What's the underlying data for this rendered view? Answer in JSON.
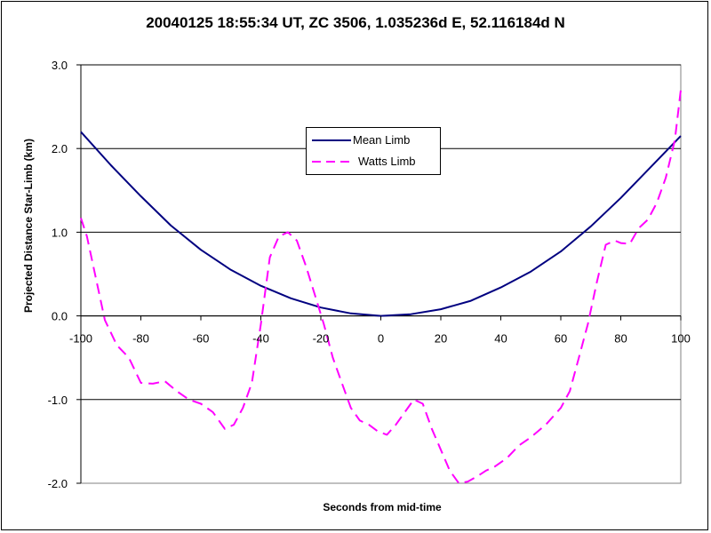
{
  "chart_data": {
    "type": "line",
    "title": "20040125 18:55:34 UT, ZC 3506, 1.035236d E, 52.116184d N",
    "xlabel": "Seconds from mid-time",
    "ylabel": "Projected Distance Star-Limb (km)",
    "xlim": [
      -100,
      100
    ],
    "ylim": [
      -2.0,
      3.0
    ],
    "x_ticks": [
      -100,
      -80,
      -60,
      -40,
      -20,
      0,
      20,
      40,
      60,
      80,
      100
    ],
    "x_tick_labels": [
      "-100",
      "-80",
      "-60",
      "-40",
      "-20",
      "0",
      "20",
      "40",
      "60",
      "80",
      "100"
    ],
    "y_ticks": [
      -2.0,
      -1.0,
      0.0,
      1.0,
      2.0,
      3.0
    ],
    "y_tick_labels": [
      "-2.0",
      "-1.0",
      "0.0",
      "1.0",
      "2.0",
      "3.0"
    ],
    "grid": "horizontal",
    "legend_position": "center-top",
    "series": [
      {
        "name": "Mean Limb",
        "color": "#000080",
        "style": "solid",
        "x": [
          -100,
          -90,
          -80,
          -70,
          -60,
          -50,
          -40,
          -30,
          -20,
          -10,
          0,
          10,
          20,
          30,
          40,
          50,
          60,
          70,
          80,
          90,
          100
        ],
        "y": [
          2.2,
          1.8,
          1.43,
          1.08,
          0.79,
          0.55,
          0.36,
          0.21,
          0.1,
          0.03,
          0.0,
          0.02,
          0.08,
          0.18,
          0.34,
          0.53,
          0.77,
          1.07,
          1.41,
          1.78,
          2.15
        ]
      },
      {
        "name": "Watts Limb",
        "color": "#ff00ff",
        "style": "dashed",
        "x": [
          -100,
          -98,
          -95,
          -92,
          -88,
          -84,
          -80,
          -76,
          -72,
          -68,
          -64,
          -60,
          -56,
          -52,
          -49,
          -46,
          -43,
          -40,
          -37,
          -34,
          -31,
          -28,
          -25,
          -22,
          -19,
          -16,
          -13,
          -10,
          -7,
          -4,
          -1,
          2,
          5,
          8,
          11,
          14,
          17,
          20,
          23,
          26,
          29,
          32,
          35,
          38,
          42,
          46,
          50,
          55,
          60,
          63,
          66,
          69,
          72,
          75,
          78,
          80,
          83,
          86,
          89,
          92,
          95,
          98,
          100
        ],
        "y": [
          1.17,
          0.95,
          0.45,
          -0.05,
          -0.35,
          -0.5,
          -0.8,
          -0.81,
          -0.78,
          -0.9,
          -1.0,
          -1.05,
          -1.15,
          -1.35,
          -1.3,
          -1.1,
          -0.8,
          -0.1,
          0.7,
          0.95,
          1.0,
          0.9,
          0.6,
          0.25,
          -0.1,
          -0.5,
          -0.8,
          -1.1,
          -1.25,
          -1.3,
          -1.38,
          -1.42,
          -1.3,
          -1.15,
          -1.0,
          -1.05,
          -1.35,
          -1.6,
          -1.85,
          -2.0,
          -1.98,
          -1.92,
          -1.85,
          -1.8,
          -1.7,
          -1.55,
          -1.45,
          -1.3,
          -1.1,
          -0.9,
          -0.5,
          -0.1,
          0.4,
          0.85,
          0.9,
          0.87,
          0.86,
          1.05,
          1.15,
          1.35,
          1.65,
          2.1,
          2.7
        ]
      }
    ]
  }
}
